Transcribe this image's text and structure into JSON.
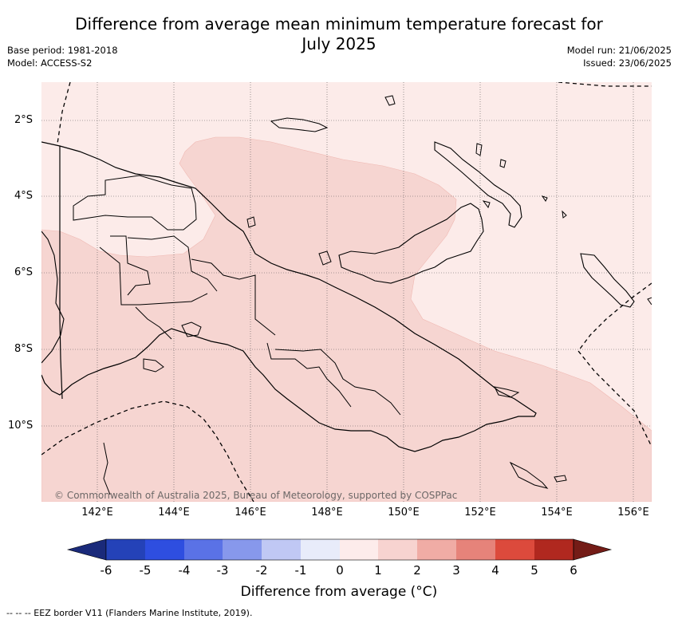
{
  "title_line1": "Difference from average mean minimum temperature forecast for",
  "title_line2": "July 2025",
  "meta_left": [
    "Base period: 1981-2018",
    "Model: ACCESS-S2"
  ],
  "meta_right": [
    "Model run: 21/06/2025",
    "Issued: 23/06/2025"
  ],
  "lat_labels": [
    "2°S",
    "4°S",
    "6°S",
    "8°S",
    "10°S"
  ],
  "lon_labels": [
    "142°E",
    "144°E",
    "146°E",
    "148°E",
    "150°E",
    "152°E",
    "154°E",
    "156°E"
  ],
  "copyright": "© Commonwealth of Australia 2025, Bureau of Meteorology, supported by COSPPac",
  "colorbar": {
    "ticks": [
      "-6",
      "-5",
      "-4",
      "-3",
      "-2",
      "-1",
      "0",
      "1",
      "2",
      "3",
      "4",
      "5",
      "6"
    ],
    "colors": [
      "#1a2a7a",
      "#2442b8",
      "#2e4ee0",
      "#5a72e6",
      "#8798ec",
      "#c0c8f4",
      "#e8ecfa",
      "#fdeceb",
      "#f7d3d0",
      "#f0aca5",
      "#e6837a",
      "#dc4a3c",
      "#b0281f",
      "#741c17"
    ],
    "label": "Difference from average (°C)"
  },
  "legend_note": "-- -- -- EEZ border V11 (Flanders Marine Institute, 2019)."
}
